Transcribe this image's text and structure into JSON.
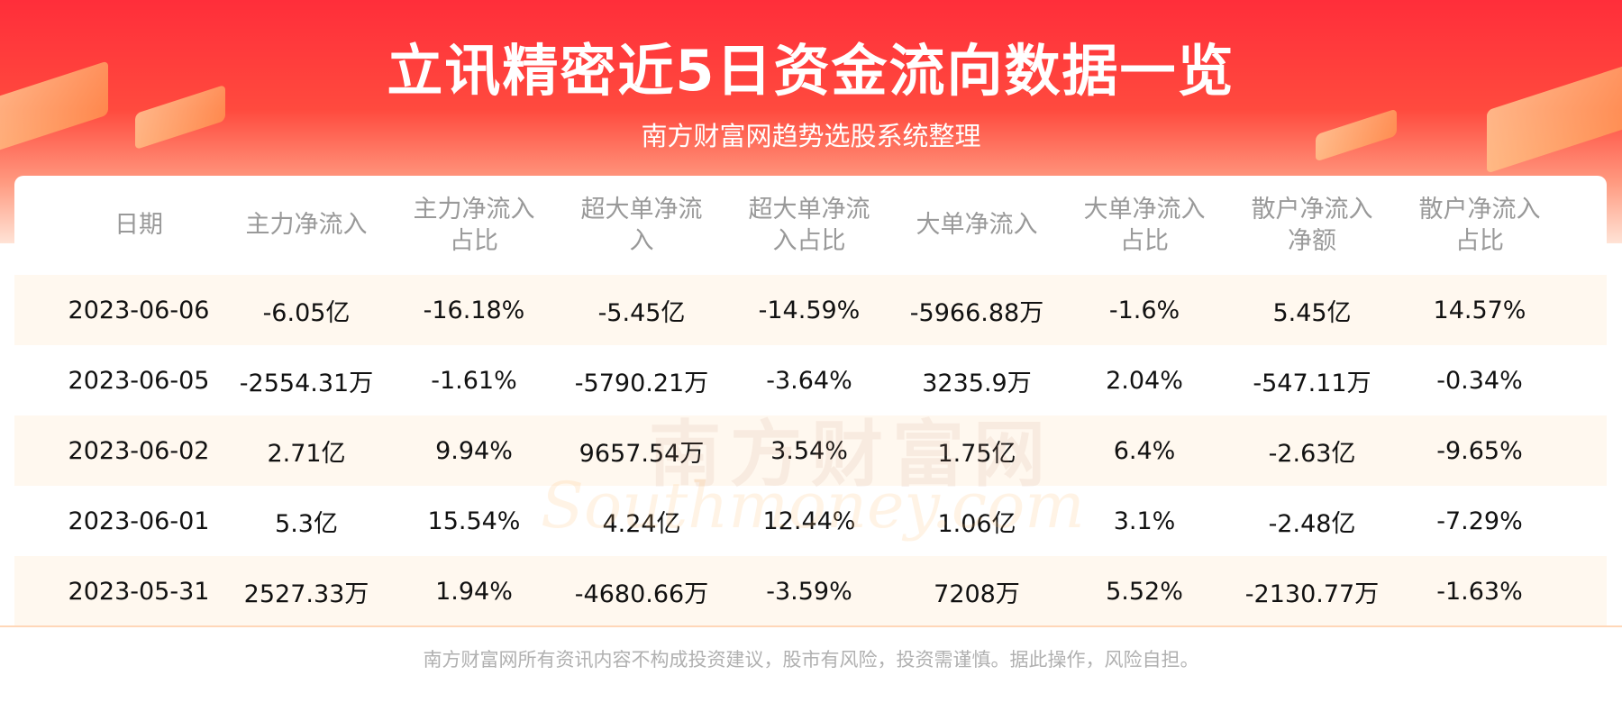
{
  "header": {
    "title": "立讯精密近5日资金流向数据一览",
    "subtitle": "南方财富网趋势选股系统整理"
  },
  "table": {
    "columns": [
      "日期",
      "主力净流入",
      "主力净流入占比",
      "超大单净流入",
      "超大单净流入占比",
      "大单净流入",
      "大单净流入占比",
      "散户净流入净额",
      "散户净流入占比"
    ],
    "rows": [
      [
        "2023-06-06",
        "-6.05亿",
        "-16.18%",
        "-5.45亿",
        "-14.59%",
        "-5966.88万",
        "-1.6%",
        "5.45亿",
        "14.57%"
      ],
      [
        "2023-06-05",
        "-2554.31万",
        "-1.61%",
        "-5790.21万",
        "-3.64%",
        "3235.9万",
        "2.04%",
        "-547.11万",
        "-0.34%"
      ],
      [
        "2023-06-02",
        "2.71亿",
        "9.94%",
        "9657.54万",
        "3.54%",
        "1.75亿",
        "6.4%",
        "-2.63亿",
        "-9.65%"
      ],
      [
        "2023-06-01",
        "5.3亿",
        "15.54%",
        "4.24亿",
        "12.44%",
        "1.06亿",
        "3.1%",
        "-2.48亿",
        "-7.29%"
      ],
      [
        "2023-05-31",
        "2527.33万",
        "1.94%",
        "-4680.66万",
        "-3.59%",
        "7208万",
        "5.52%",
        "-2130.77万",
        "-1.63%"
      ]
    ]
  },
  "watermark": {
    "cn": "南方财富网",
    "en": "Southmoney.com"
  },
  "footer": "南方财富网所有资讯内容不构成投资建议，股市有风险，投资需谨慎。据此操作，风险自担。"
}
